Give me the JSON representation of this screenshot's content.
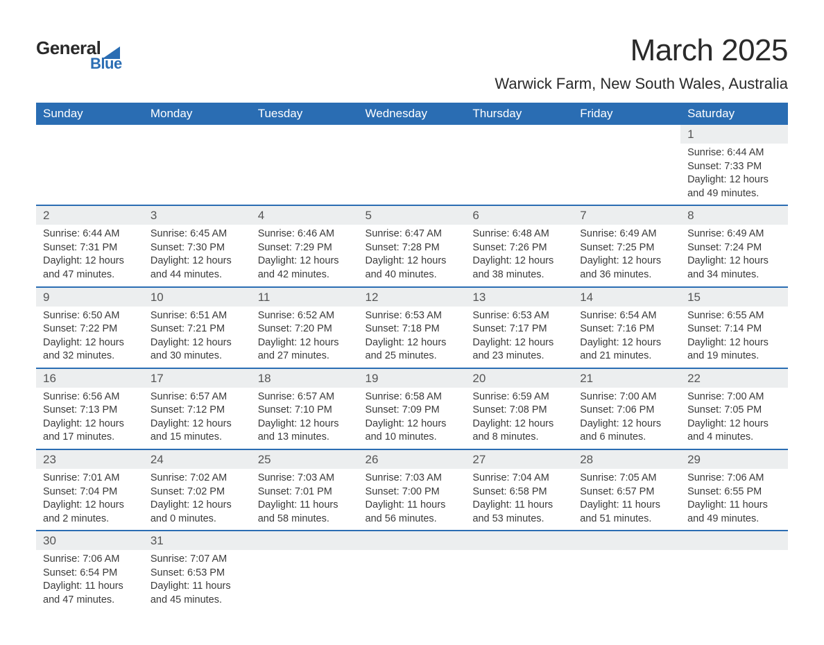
{
  "brand": {
    "name_main": "General",
    "name_sub": "Blue",
    "logo_fill": "#2a6db3",
    "text_main_color": "#2a2a2a"
  },
  "title": {
    "month": "March 2025",
    "location": "Warwick Farm, New South Wales, Australia"
  },
  "colors": {
    "header_bg": "#2a6db3",
    "header_text": "#ffffff",
    "daynum_bg": "#eceeef",
    "row_border": "#2a6db3",
    "body_text": "#3a3a3a",
    "page_bg": "#ffffff"
  },
  "typography": {
    "month_fontsize": 44,
    "location_fontsize": 22,
    "dayheader_fontsize": 17,
    "daynum_fontsize": 17,
    "detail_fontsize": 14.5
  },
  "day_headers": [
    "Sunday",
    "Monday",
    "Tuesday",
    "Wednesday",
    "Thursday",
    "Friday",
    "Saturday"
  ],
  "weeks": [
    [
      null,
      null,
      null,
      null,
      null,
      null,
      {
        "n": "1",
        "sr": "6:44 AM",
        "ss": "7:33 PM",
        "dl": "12 hours and 49 minutes."
      }
    ],
    [
      {
        "n": "2",
        "sr": "6:44 AM",
        "ss": "7:31 PM",
        "dl": "12 hours and 47 minutes."
      },
      {
        "n": "3",
        "sr": "6:45 AM",
        "ss": "7:30 PM",
        "dl": "12 hours and 44 minutes."
      },
      {
        "n": "4",
        "sr": "6:46 AM",
        "ss": "7:29 PM",
        "dl": "12 hours and 42 minutes."
      },
      {
        "n": "5",
        "sr": "6:47 AM",
        "ss": "7:28 PM",
        "dl": "12 hours and 40 minutes."
      },
      {
        "n": "6",
        "sr": "6:48 AM",
        "ss": "7:26 PM",
        "dl": "12 hours and 38 minutes."
      },
      {
        "n": "7",
        "sr": "6:49 AM",
        "ss": "7:25 PM",
        "dl": "12 hours and 36 minutes."
      },
      {
        "n": "8",
        "sr": "6:49 AM",
        "ss": "7:24 PM",
        "dl": "12 hours and 34 minutes."
      }
    ],
    [
      {
        "n": "9",
        "sr": "6:50 AM",
        "ss": "7:22 PM",
        "dl": "12 hours and 32 minutes."
      },
      {
        "n": "10",
        "sr": "6:51 AM",
        "ss": "7:21 PM",
        "dl": "12 hours and 30 minutes."
      },
      {
        "n": "11",
        "sr": "6:52 AM",
        "ss": "7:20 PM",
        "dl": "12 hours and 27 minutes."
      },
      {
        "n": "12",
        "sr": "6:53 AM",
        "ss": "7:18 PM",
        "dl": "12 hours and 25 minutes."
      },
      {
        "n": "13",
        "sr": "6:53 AM",
        "ss": "7:17 PM",
        "dl": "12 hours and 23 minutes."
      },
      {
        "n": "14",
        "sr": "6:54 AM",
        "ss": "7:16 PM",
        "dl": "12 hours and 21 minutes."
      },
      {
        "n": "15",
        "sr": "6:55 AM",
        "ss": "7:14 PM",
        "dl": "12 hours and 19 minutes."
      }
    ],
    [
      {
        "n": "16",
        "sr": "6:56 AM",
        "ss": "7:13 PM",
        "dl": "12 hours and 17 minutes."
      },
      {
        "n": "17",
        "sr": "6:57 AM",
        "ss": "7:12 PM",
        "dl": "12 hours and 15 minutes."
      },
      {
        "n": "18",
        "sr": "6:57 AM",
        "ss": "7:10 PM",
        "dl": "12 hours and 13 minutes."
      },
      {
        "n": "19",
        "sr": "6:58 AM",
        "ss": "7:09 PM",
        "dl": "12 hours and 10 minutes."
      },
      {
        "n": "20",
        "sr": "6:59 AM",
        "ss": "7:08 PM",
        "dl": "12 hours and 8 minutes."
      },
      {
        "n": "21",
        "sr": "7:00 AM",
        "ss": "7:06 PM",
        "dl": "12 hours and 6 minutes."
      },
      {
        "n": "22",
        "sr": "7:00 AM",
        "ss": "7:05 PM",
        "dl": "12 hours and 4 minutes."
      }
    ],
    [
      {
        "n": "23",
        "sr": "7:01 AM",
        "ss": "7:04 PM",
        "dl": "12 hours and 2 minutes."
      },
      {
        "n": "24",
        "sr": "7:02 AM",
        "ss": "7:02 PM",
        "dl": "12 hours and 0 minutes."
      },
      {
        "n": "25",
        "sr": "7:03 AM",
        "ss": "7:01 PM",
        "dl": "11 hours and 58 minutes."
      },
      {
        "n": "26",
        "sr": "7:03 AM",
        "ss": "7:00 PM",
        "dl": "11 hours and 56 minutes."
      },
      {
        "n": "27",
        "sr": "7:04 AM",
        "ss": "6:58 PM",
        "dl": "11 hours and 53 minutes."
      },
      {
        "n": "28",
        "sr": "7:05 AM",
        "ss": "6:57 PM",
        "dl": "11 hours and 51 minutes."
      },
      {
        "n": "29",
        "sr": "7:06 AM",
        "ss": "6:55 PM",
        "dl": "11 hours and 49 minutes."
      }
    ],
    [
      {
        "n": "30",
        "sr": "7:06 AM",
        "ss": "6:54 PM",
        "dl": "11 hours and 47 minutes."
      },
      {
        "n": "31",
        "sr": "7:07 AM",
        "ss": "6:53 PM",
        "dl": "11 hours and 45 minutes."
      },
      null,
      null,
      null,
      null,
      null
    ]
  ],
  "labels": {
    "sunrise_prefix": "Sunrise: ",
    "sunset_prefix": "Sunset: ",
    "daylight_prefix": "Daylight: "
  }
}
